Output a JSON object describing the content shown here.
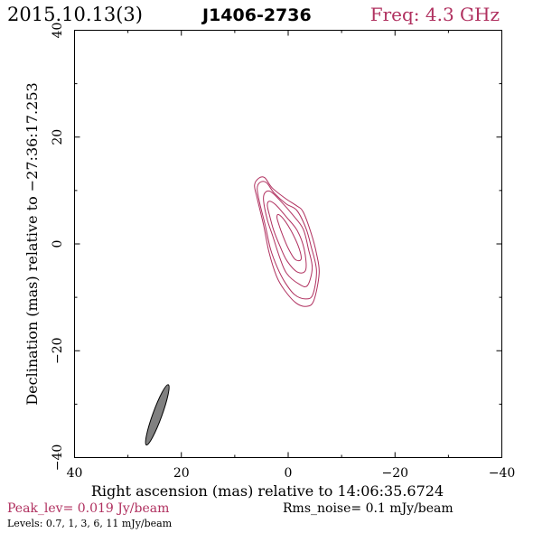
{
  "header": {
    "date": "2015.10.13(3)",
    "source": "J1406-2736",
    "freq_label": "Freq: 4.3 GHz"
  },
  "footer": {
    "peak_level": "Peak_lev=  0.019 Jy/beam",
    "rms_noise": "Rms_noise=   0.1 mJy/beam",
    "levels": "Levels: 0.7,    1,    3,    6,    11 mJy/beam"
  },
  "colors": {
    "contour": "#b0305f",
    "accent_text": "#b0305f",
    "beam_fill": "#808080"
  },
  "chart_data": {
    "type": "contour",
    "title": "J1406-2736",
    "xlabel": "Right ascension (mas) relative to 14:06:35.6724",
    "ylabel": "Declination (mas) relative to −27:36:17.253",
    "xlim": [
      40,
      -40
    ],
    "ylim": [
      -40,
      40
    ],
    "x_ticks": [
      40,
      20,
      0,
      -20,
      -40
    ],
    "y_ticks": [
      -40,
      -20,
      0,
      20,
      40
    ],
    "x_tick_labels": [
      "40",
      "20",
      "0",
      "−20",
      "−40"
    ],
    "y_tick_labels": [
      "−40",
      "−20",
      "0",
      "20",
      "40"
    ],
    "contour_levels_mJy": [
      0.7,
      1,
      3,
      6,
      11
    ],
    "peak_Jy_per_beam": 0.019,
    "rms_mJy_per_beam": 0.1,
    "contours": [
      {
        "level": 0.7,
        "points": [
          [
            5.5,
            12.3
          ],
          [
            4.4,
            12.4
          ],
          [
            3.0,
            10.5
          ],
          [
            0.5,
            8.5
          ],
          [
            -1.5,
            7.2
          ],
          [
            -2.8,
            6.0
          ],
          [
            -4.3,
            2.0
          ],
          [
            -5.3,
            -1.8
          ],
          [
            -5.8,
            -5.5
          ],
          [
            -4.8,
            -10.6
          ],
          [
            -3.4,
            -11.7
          ],
          [
            -1.4,
            -11.0
          ],
          [
            0.8,
            -8.5
          ],
          [
            2.2,
            -6.0
          ],
          [
            3.6,
            -1.5
          ],
          [
            4.6,
            3.5
          ],
          [
            5.8,
            8.5
          ],
          [
            6.3,
            11.0
          ]
        ]
      },
      {
        "level": 1,
        "points": [
          [
            5.3,
            11.5
          ],
          [
            4.1,
            11.5
          ],
          [
            2.6,
            9.5
          ],
          [
            0.4,
            7.5
          ],
          [
            -1.6,
            6.3
          ],
          [
            -3.3,
            3.0
          ],
          [
            -4.3,
            -0.5
          ],
          [
            -5.3,
            -5.0
          ],
          [
            -4.6,
            -9.5
          ],
          [
            -3.2,
            -10.3
          ],
          [
            -1.2,
            -9.5
          ],
          [
            0.6,
            -7.2
          ],
          [
            2.0,
            -4.5
          ],
          [
            3.3,
            -1.0
          ],
          [
            4.3,
            3.5
          ],
          [
            5.3,
            7.5
          ],
          [
            5.8,
            10.3
          ]
        ]
      },
      {
        "level": 3,
        "points": [
          [
            4.4,
            9.5
          ],
          [
            3.3,
            9.8
          ],
          [
            1.4,
            8.0
          ],
          [
            -0.8,
            5.5
          ],
          [
            -2.8,
            2.8
          ],
          [
            -3.8,
            -1.0
          ],
          [
            -4.5,
            -4.5
          ],
          [
            -3.6,
            -7.8
          ],
          [
            -2.0,
            -7.5
          ],
          [
            0.3,
            -5.5
          ],
          [
            1.6,
            -2.5
          ],
          [
            2.9,
            1.5
          ],
          [
            3.9,
            4.5
          ],
          [
            4.6,
            8.0
          ]
        ]
      },
      {
        "level": 6,
        "points": [
          [
            3.5,
            8.0
          ],
          [
            2.3,
            7.3
          ],
          [
            0.3,
            5.0
          ],
          [
            -1.7,
            2.5
          ],
          [
            -3.0,
            -1.0
          ],
          [
            -3.3,
            -4.8
          ],
          [
            -1.8,
            -5.3
          ],
          [
            0.2,
            -3.2
          ],
          [
            1.5,
            -0.5
          ],
          [
            2.7,
            2.5
          ],
          [
            3.4,
            5.0
          ],
          [
            3.9,
            7.2
          ]
        ]
      },
      {
        "level": 11,
        "points": [
          [
            1.8,
            5.5
          ],
          [
            0.6,
            4.3
          ],
          [
            -0.9,
            1.8
          ],
          [
            -2.1,
            -1.0
          ],
          [
            -2.4,
            -2.9
          ],
          [
            -1.3,
            -2.9
          ],
          [
            0.0,
            -0.8
          ],
          [
            1.1,
            1.8
          ],
          [
            1.8,
            3.8
          ],
          [
            2.1,
            5.0
          ]
        ]
      }
    ],
    "beam": {
      "center_x": 24.5,
      "center_y": -32.0,
      "major_mas": 12.0,
      "minor_mas": 1.7,
      "pa_deg": 20
    }
  }
}
